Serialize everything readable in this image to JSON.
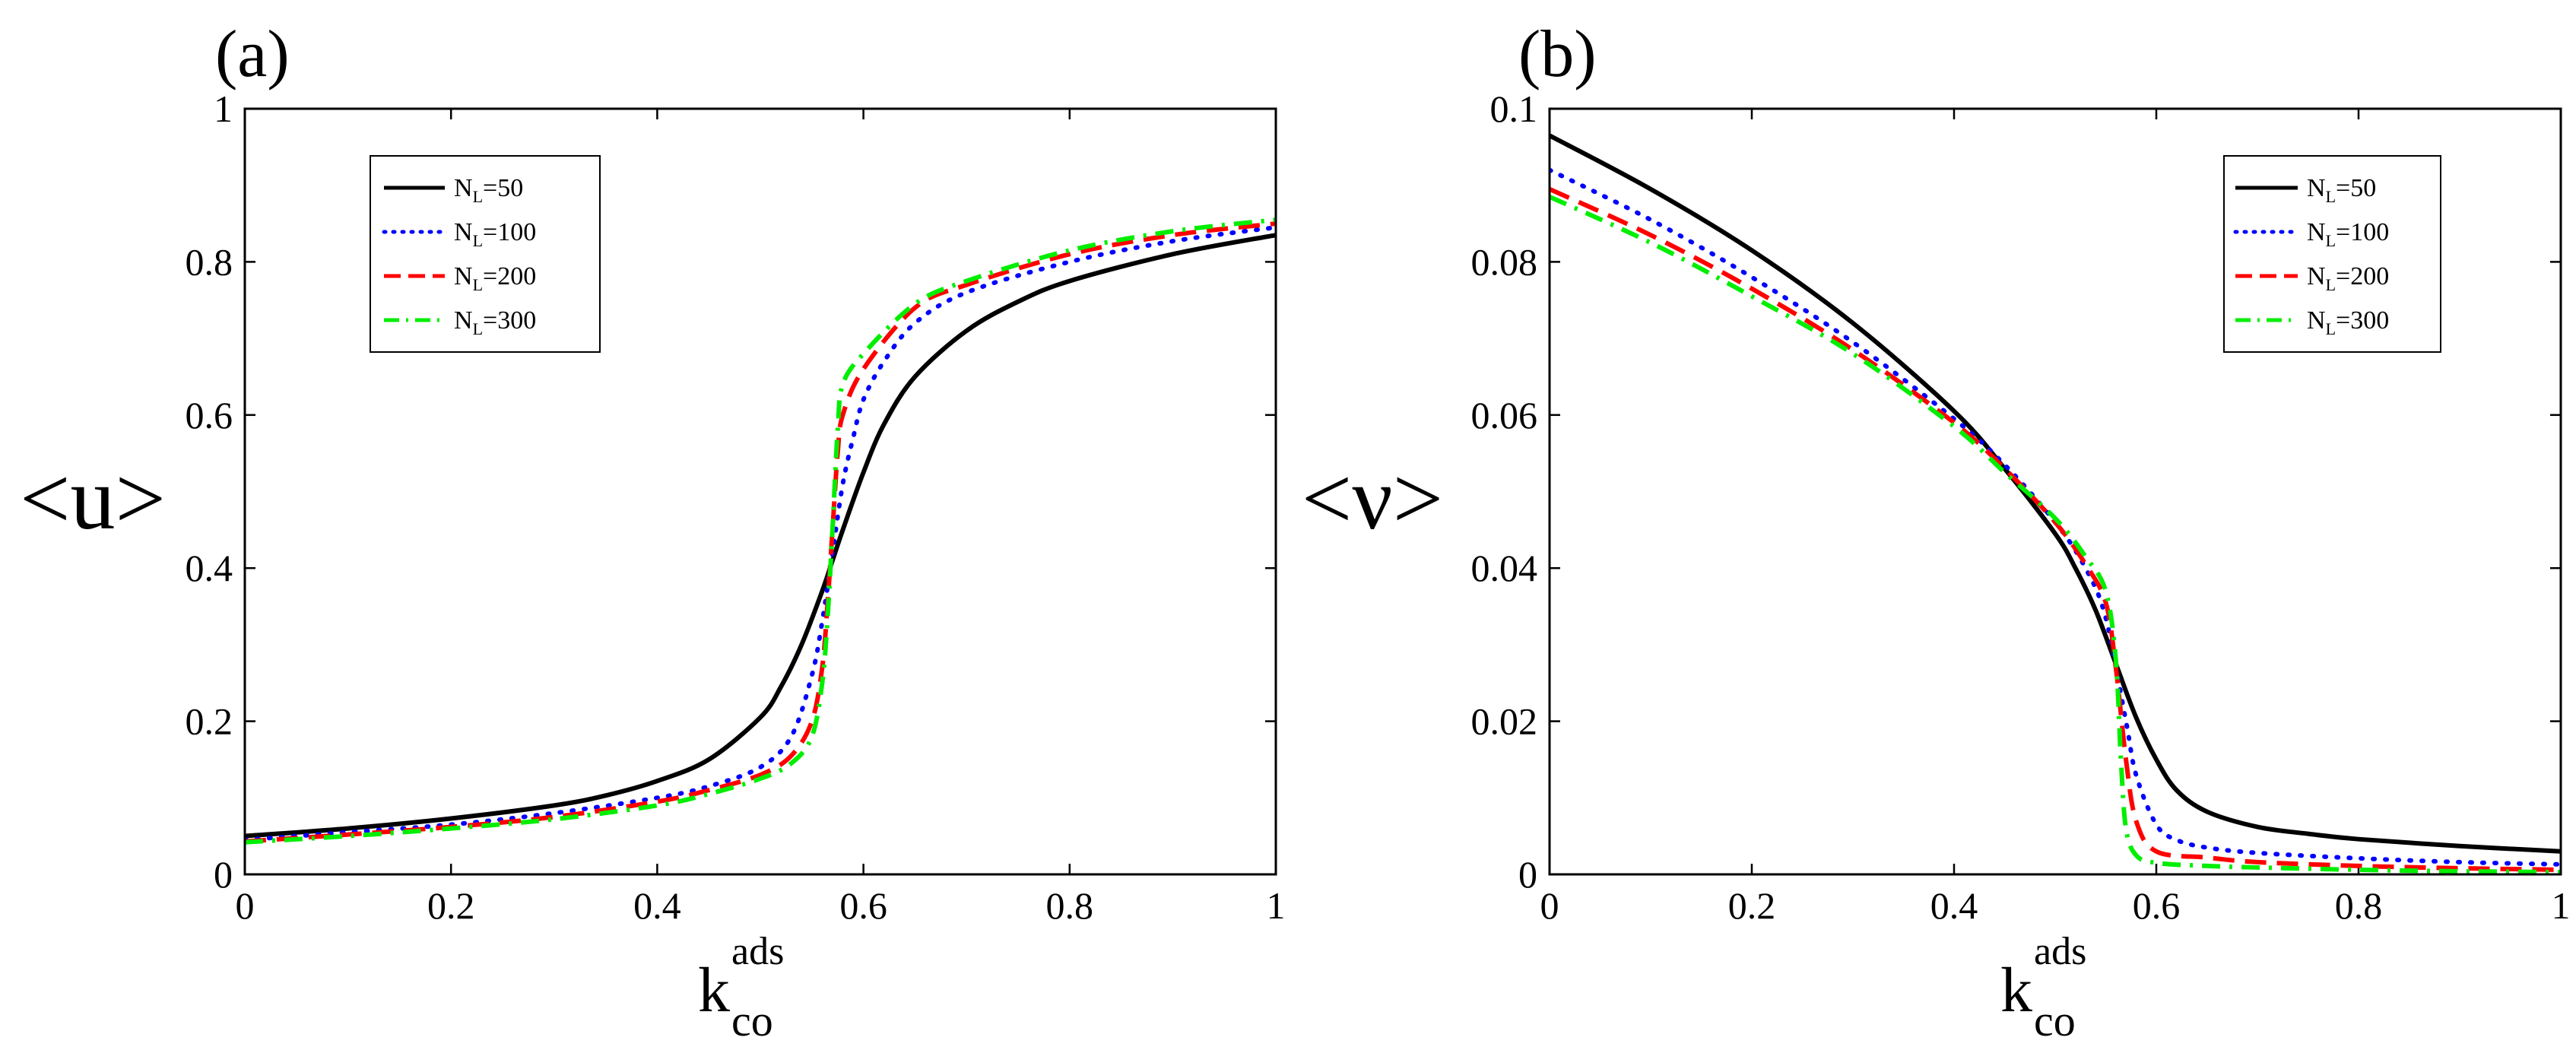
{
  "chart_data": [
    {
      "type": "line",
      "panel_label": "(a)",
      "ylabel": "<u>",
      "xlabel": {
        "main": "k",
        "superscript": "ads",
        "subscript": "co"
      },
      "xlim": [
        0,
        1
      ],
      "ylim": [
        0,
        1
      ],
      "xticks": [
        0,
        0.2,
        0.4,
        0.6,
        0.8,
        1
      ],
      "xtick_labels": [
        "0",
        "0.2",
        "0.4",
        "0.6",
        "0.8",
        "1"
      ],
      "yticks": [
        0,
        0.2,
        0.4,
        0.6,
        0.8,
        1
      ],
      "ytick_labels": [
        "0",
        "0.2",
        "0.4",
        "0.6",
        "0.8",
        "1"
      ],
      "legend_position": "top-left",
      "series": [
        {
          "name": "N_L=50",
          "legend_main": "N",
          "legend_sub": "L",
          "legend_rest": "=50",
          "color": "#000000",
          "style": "solid",
          "x": [
            0,
            0.1,
            0.2,
            0.3,
            0.35,
            0.4,
            0.45,
            0.5,
            0.52,
            0.54,
            0.56,
            0.57,
            0.58,
            0.6,
            0.62,
            0.65,
            0.7,
            0.75,
            0.8,
            0.9,
            1.0
          ],
          "y": [
            0.05,
            0.06,
            0.073,
            0.09,
            0.103,
            0.122,
            0.15,
            0.205,
            0.245,
            0.3,
            0.37,
            0.41,
            0.45,
            0.525,
            0.588,
            0.65,
            0.71,
            0.748,
            0.775,
            0.81,
            0.835
          ]
        },
        {
          "name": "N_L=100",
          "legend_main": "N",
          "legend_sub": "L",
          "legend_rest": "=100",
          "color": "#0000ff",
          "style": "dotted",
          "x": [
            0,
            0.1,
            0.2,
            0.3,
            0.4,
            0.45,
            0.5,
            0.53,
            0.55,
            0.56,
            0.57,
            0.58,
            0.59,
            0.6,
            0.62,
            0.65,
            0.7,
            0.8,
            0.9,
            1.0
          ],
          "y": [
            0.045,
            0.055,
            0.065,
            0.08,
            0.1,
            0.115,
            0.14,
            0.18,
            0.26,
            0.33,
            0.42,
            0.51,
            0.57,
            0.62,
            0.67,
            0.72,
            0.76,
            0.8,
            0.827,
            0.845
          ]
        },
        {
          "name": "N_L=200",
          "legend_main": "N",
          "legend_sub": "L",
          "legend_rest": "=200",
          "color": "#ff0000",
          "style": "dashed",
          "x": [
            0,
            0.1,
            0.2,
            0.3,
            0.4,
            0.45,
            0.5,
            0.53,
            0.55,
            0.56,
            0.565,
            0.57,
            0.575,
            0.58,
            0.6,
            0.65,
            0.7,
            0.8,
            0.9,
            1.0
          ],
          "y": [
            0.043,
            0.052,
            0.062,
            0.075,
            0.095,
            0.11,
            0.13,
            0.155,
            0.2,
            0.27,
            0.35,
            0.45,
            0.55,
            0.6,
            0.66,
            0.74,
            0.77,
            0.81,
            0.835,
            0.85
          ]
        },
        {
          "name": "N_L=300",
          "legend_main": "N",
          "legend_sub": "L",
          "legend_rest": "=300",
          "color": "#00ee00",
          "style": "dashdot",
          "x": [
            0,
            0.1,
            0.2,
            0.3,
            0.4,
            0.45,
            0.5,
            0.53,
            0.55,
            0.56,
            0.565,
            0.57,
            0.575,
            0.58,
            0.6,
            0.65,
            0.7,
            0.8,
            0.9,
            1.0
          ],
          "y": [
            0.042,
            0.05,
            0.06,
            0.072,
            0.09,
            0.105,
            0.125,
            0.145,
            0.18,
            0.25,
            0.33,
            0.45,
            0.58,
            0.64,
            0.68,
            0.745,
            0.775,
            0.815,
            0.84,
            0.855
          ]
        }
      ]
    },
    {
      "type": "line",
      "panel_label": "(b)",
      "ylabel": "<ν>",
      "xlabel": {
        "main": "k",
        "superscript": "ads",
        "subscript": "co"
      },
      "xlim": [
        0,
        1
      ],
      "ylim": [
        0,
        0.1
      ],
      "xticks": [
        0,
        0.2,
        0.4,
        0.6,
        0.8,
        1
      ],
      "xtick_labels": [
        "0",
        "0.2",
        "0.4",
        "0.6",
        "0.8",
        "1"
      ],
      "yticks": [
        0,
        0.02,
        0.04,
        0.06,
        0.08,
        0.1
      ],
      "ytick_labels": [
        "0",
        "0.02",
        "0.04",
        "0.06",
        "0.08",
        "0.1"
      ],
      "legend_position": "top-right",
      "series": [
        {
          "name": "N_L=50",
          "legend_main": "N",
          "legend_sub": "L",
          "legend_rest": "=50",
          "color": "#000000",
          "style": "solid",
          "x": [
            0,
            0.1,
            0.2,
            0.3,
            0.4,
            0.45,
            0.5,
            0.52,
            0.54,
            0.56,
            0.58,
            0.6,
            0.62,
            0.65,
            0.7,
            0.75,
            0.8,
            0.9,
            1.0
          ],
          "y": [
            0.0965,
            0.0895,
            0.0815,
            0.072,
            0.0605,
            0.053,
            0.0445,
            0.04,
            0.0345,
            0.0275,
            0.0205,
            0.015,
            0.011,
            0.0082,
            0.0062,
            0.0053,
            0.0046,
            0.0037,
            0.003
          ]
        },
        {
          "name": "N_L=100",
          "legend_main": "N",
          "legend_sub": "L",
          "legend_rest": "=100",
          "color": "#0000ff",
          "style": "dotted",
          "x": [
            0,
            0.1,
            0.2,
            0.3,
            0.4,
            0.45,
            0.5,
            0.53,
            0.55,
            0.57,
            0.58,
            0.6,
            0.62,
            0.65,
            0.7,
            0.8,
            0.9,
            1.0
          ],
          "y": [
            0.092,
            0.0855,
            0.078,
            0.0695,
            0.0595,
            0.0535,
            0.046,
            0.04,
            0.0335,
            0.02,
            0.013,
            0.0065,
            0.0045,
            0.0035,
            0.0028,
            0.0021,
            0.0016,
            0.0013
          ]
        },
        {
          "name": "N_L=200",
          "legend_main": "N",
          "legend_sub": "L",
          "legend_rest": "=200",
          "color": "#ff0000",
          "style": "dashed",
          "x": [
            0,
            0.1,
            0.2,
            0.3,
            0.4,
            0.45,
            0.5,
            0.53,
            0.55,
            0.56,
            0.57,
            0.58,
            0.6,
            0.65,
            0.7,
            0.8,
            0.9,
            1.0
          ],
          "y": [
            0.0895,
            0.0835,
            0.0765,
            0.0685,
            0.059,
            0.053,
            0.046,
            0.0405,
            0.0355,
            0.027,
            0.015,
            0.007,
            0.003,
            0.0022,
            0.0016,
            0.0011,
            0.0008,
            0.0006
          ]
        },
        {
          "name": "N_L=300",
          "legend_main": "N",
          "legend_sub": "L",
          "legend_rest": "=300",
          "color": "#00ee00",
          "style": "dashdot",
          "x": [
            0,
            0.1,
            0.2,
            0.3,
            0.4,
            0.45,
            0.5,
            0.53,
            0.55,
            0.56,
            0.565,
            0.57,
            0.58,
            0.6,
            0.65,
            0.7,
            0.8,
            0.9,
            1.0
          ],
          "y": [
            0.0885,
            0.0825,
            0.0755,
            0.068,
            0.0585,
            0.0525,
            0.0465,
            0.0415,
            0.037,
            0.028,
            0.015,
            0.006,
            0.0025,
            0.0015,
            0.0011,
            0.0009,
            0.0006,
            0.0004,
            0.0003
          ]
        }
      ]
    }
  ]
}
